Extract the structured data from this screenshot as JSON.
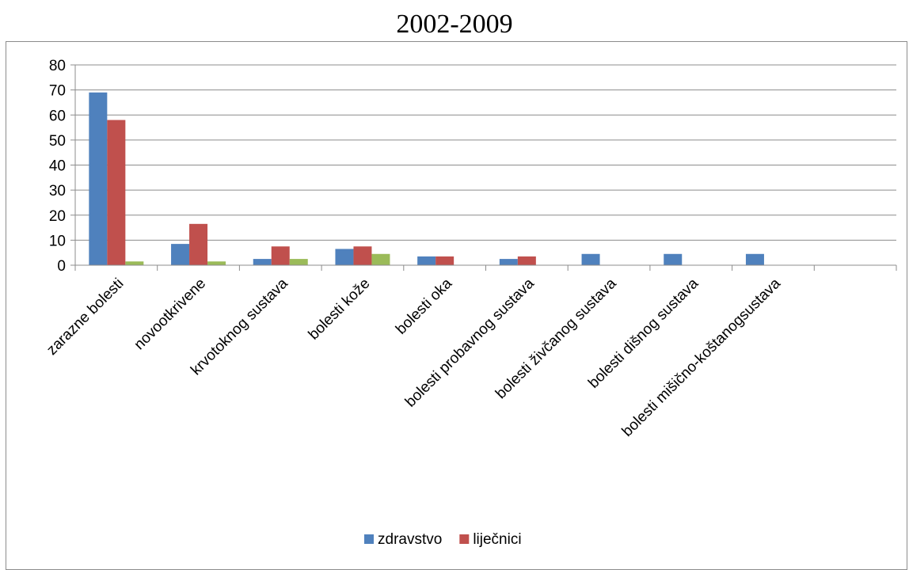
{
  "chart_data": {
    "type": "bar",
    "title": "2002-2009",
    "xlabel": "",
    "ylabel": "",
    "ylim": [
      0,
      80
    ],
    "yticks": [
      0,
      10,
      20,
      30,
      40,
      50,
      60,
      70,
      80
    ],
    "grid": true,
    "legend_position": "bottom",
    "categories": [
      "zarazne bolesti",
      "novootkrivene",
      "krvotoknog sustava",
      "bolesti kože",
      "bolesti oka",
      "bolesti probavnog sustava",
      "bolesti živčanog sustava",
      "bolesti dišnog sustava",
      "bolesti mišično-koštanogsustava",
      ""
    ],
    "series": [
      {
        "name": "zdravstvo",
        "color": "#4f81bd",
        "values": [
          69,
          8.5,
          2.5,
          6.5,
          3.5,
          2.5,
          4.5,
          4.5,
          4.5,
          0
        ]
      },
      {
        "name": "liječnici",
        "color": "#c0504d",
        "values": [
          58,
          16.5,
          7.5,
          7.5,
          3.5,
          3.5,
          0,
          0,
          0,
          0
        ]
      },
      {
        "name": "",
        "color": "#9bbb59",
        "values": [
          1.5,
          1.5,
          2.5,
          4.5,
          0,
          0,
          0,
          0,
          0,
          0
        ]
      }
    ]
  }
}
